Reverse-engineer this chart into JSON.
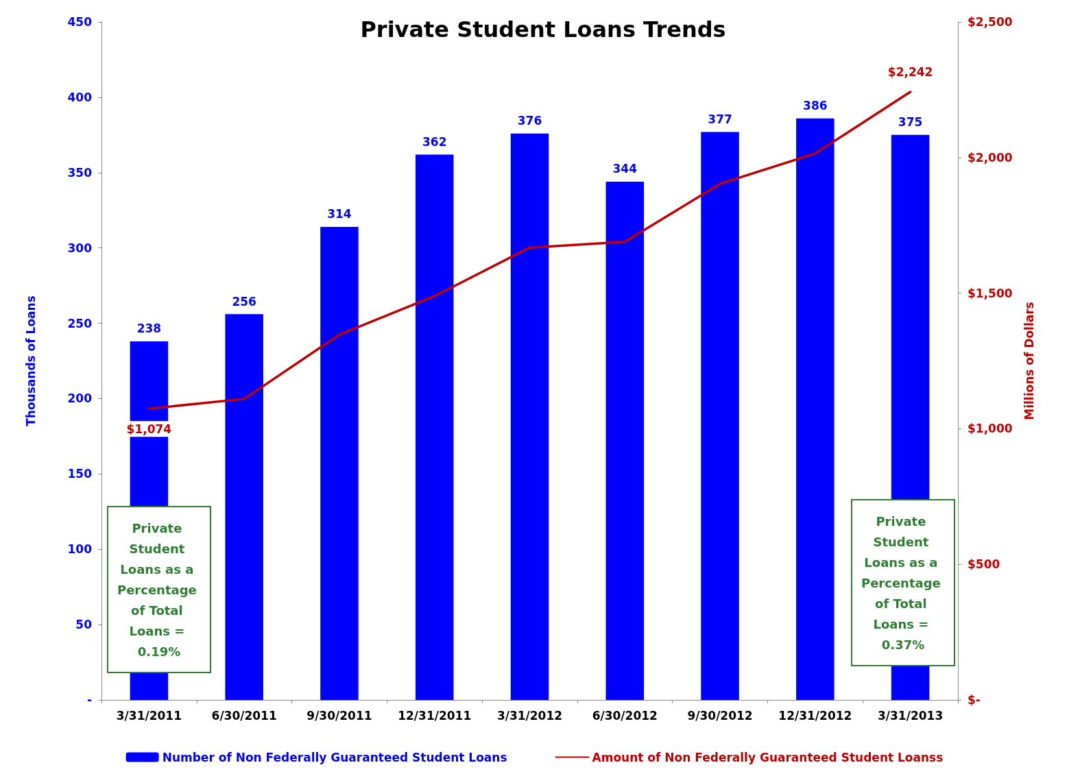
{
  "chart_data": {
    "type": "bar",
    "title": "Private Student Loans Trends",
    "ylabel": "Thousands of Loans",
    "y2label": "Millions of Dollars",
    "categories": [
      "3/31/2011",
      "6/30/2011",
      "9/30/2011",
      "12/31/2011",
      "3/31/2012",
      "6/30/2012",
      "9/30/2012",
      "12/31/2012",
      "3/31/2013"
    ],
    "series": [
      {
        "name": "Number of Non Federally Guaranteed Student Loans",
        "color": "#0000ff",
        "values": [
          238,
          256,
          314,
          362,
          376,
          344,
          377,
          386,
          375
        ]
      },
      {
        "name": "Amount of Non Federally Guaranteed Student Loanss",
        "type": "line",
        "axis": "y2",
        "color": "#c00000",
        "marker": "none",
        "values": [
          1074,
          1110,
          1347,
          1489,
          1668,
          1689,
          1903,
          2015,
          2242
        ],
        "value_labels": [
          "$1,074",
          null,
          null,
          null,
          null,
          null,
          null,
          null,
          "$2,242"
        ]
      }
    ],
    "data_labels": true,
    "ylim": [
      0,
      450
    ],
    "yticks": [
      {
        "value": 0,
        "label": "-"
      },
      50,
      100,
      150,
      200,
      250,
      300,
      350,
      400,
      450
    ],
    "y2lim": [
      0,
      2500
    ],
    "y2ticks": [
      {
        "value": 0,
        "label": "$-"
      },
      {
        "value": 500,
        "label": "$500"
      },
      {
        "value": 1000,
        "label": "$1,000"
      },
      {
        "value": 1500,
        "label": "$1,500"
      },
      {
        "value": 2000,
        "label": "$2,000"
      },
      {
        "value": 2500,
        "label": "$2,500"
      }
    ],
    "grid": false,
    "legend": "bottom",
    "annotations": [
      "Private Student Loans as a Percentage of Total Loans = 0.19%",
      "Private Student Loans as a Percentage of Total Loans = 0.37%"
    ]
  }
}
